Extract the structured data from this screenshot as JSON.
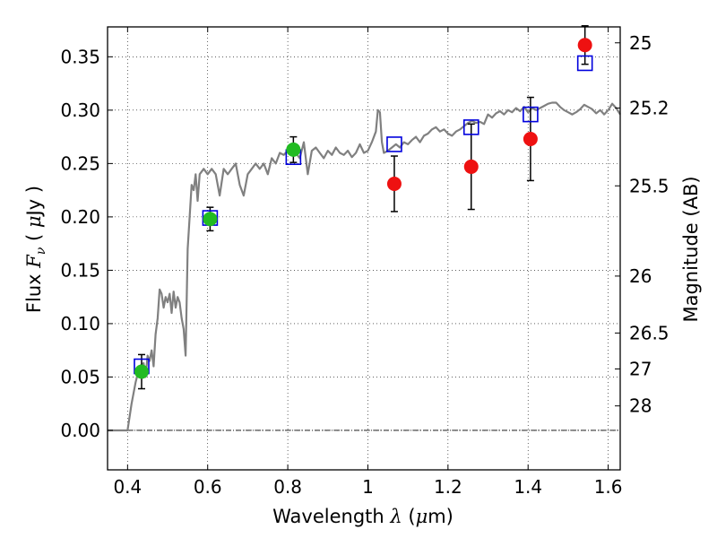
{
  "chart_data": {
    "type": "scatter",
    "xlabel": {
      "pre": "Wavelength  ",
      "sym": "λ",
      "post": " (",
      "mu": "μ",
      "unit": "m)"
    },
    "ylabel": {
      "pre": "Flux  ",
      "sym": "F",
      "sub": "ν",
      "post": "  ( ",
      "mu": "μ",
      "unit": "Jy )"
    },
    "y2label": "Magnitude (AB)",
    "xlim": [
      0.35,
      1.63
    ],
    "ylim": [
      -0.037,
      0.378
    ],
    "grid": true,
    "x_ticks": [
      {
        "v": 0.4,
        "label": "0.4"
      },
      {
        "v": 0.6,
        "label": "0.6"
      },
      {
        "v": 0.8,
        "label": "0.8"
      },
      {
        "v": 1.0,
        "label": "1"
      },
      {
        "v": 1.2,
        "label": "1.2"
      },
      {
        "v": 1.4,
        "label": "1.4"
      },
      {
        "v": 1.6,
        "label": "1.6"
      }
    ],
    "y_ticks": [
      {
        "v": 0.0,
        "label": "0.00"
      },
      {
        "v": 0.05,
        "label": "0.05"
      },
      {
        "v": 0.1,
        "label": "0.10"
      },
      {
        "v": 0.15,
        "label": "0.15"
      },
      {
        "v": 0.2,
        "label": "0.20"
      },
      {
        "v": 0.25,
        "label": "0.25"
      },
      {
        "v": 0.3,
        "label": "0.30"
      },
      {
        "v": 0.35,
        "label": "0.35"
      }
    ],
    "mag_ticks": [
      {
        "mag": 25,
        "label": "25"
      },
      {
        "mag": 25.2,
        "label": "25.2"
      },
      {
        "mag": 25.5,
        "label": "25.5"
      },
      {
        "mag": 26,
        "label": "26"
      },
      {
        "mag": 26.5,
        "label": "26.5"
      },
      {
        "mag": 27,
        "label": "27"
      },
      {
        "mag": 28,
        "label": "28"
      }
    ],
    "model_spectrum": {
      "color": "#808080",
      "points": [
        [
          0.35,
          0.0
        ],
        [
          0.4,
          0.0
        ],
        [
          0.41,
          0.025
        ],
        [
          0.42,
          0.045
        ],
        [
          0.43,
          0.06
        ],
        [
          0.44,
          0.063
        ],
        [
          0.445,
          0.05
        ],
        [
          0.45,
          0.07
        ],
        [
          0.455,
          0.065
        ],
        [
          0.46,
          0.075
        ],
        [
          0.465,
          0.06
        ],
        [
          0.47,
          0.09
        ],
        [
          0.475,
          0.105
        ],
        [
          0.48,
          0.132
        ],
        [
          0.485,
          0.128
        ],
        [
          0.49,
          0.115
        ],
        [
          0.495,
          0.125
        ],
        [
          0.5,
          0.12
        ],
        [
          0.505,
          0.128
        ],
        [
          0.51,
          0.11
        ],
        [
          0.515,
          0.13
        ],
        [
          0.52,
          0.115
        ],
        [
          0.525,
          0.125
        ],
        [
          0.53,
          0.12
        ],
        [
          0.535,
          0.105
        ],
        [
          0.54,
          0.095
        ],
        [
          0.545,
          0.07
        ],
        [
          0.55,
          0.17
        ],
        [
          0.555,
          0.2
        ],
        [
          0.56,
          0.23
        ],
        [
          0.565,
          0.225
        ],
        [
          0.57,
          0.24
        ],
        [
          0.575,
          0.215
        ],
        [
          0.58,
          0.24
        ],
        [
          0.59,
          0.245
        ],
        [
          0.6,
          0.24
        ],
        [
          0.61,
          0.245
        ],
        [
          0.62,
          0.24
        ],
        [
          0.63,
          0.22
        ],
        [
          0.64,
          0.245
        ],
        [
          0.65,
          0.24
        ],
        [
          0.66,
          0.245
        ],
        [
          0.67,
          0.25
        ],
        [
          0.68,
          0.23
        ],
        [
          0.69,
          0.22
        ],
        [
          0.7,
          0.24
        ],
        [
          0.71,
          0.245
        ],
        [
          0.72,
          0.25
        ],
        [
          0.73,
          0.245
        ],
        [
          0.74,
          0.25
        ],
        [
          0.75,
          0.24
        ],
        [
          0.76,
          0.255
        ],
        [
          0.77,
          0.25
        ],
        [
          0.78,
          0.26
        ],
        [
          0.79,
          0.258
        ],
        [
          0.8,
          0.262
        ],
        [
          0.81,
          0.265
        ],
        [
          0.82,
          0.26
        ],
        [
          0.83,
          0.255
        ],
        [
          0.84,
          0.27
        ],
        [
          0.85,
          0.24
        ],
        [
          0.86,
          0.262
        ],
        [
          0.87,
          0.265
        ],
        [
          0.88,
          0.26
        ],
        [
          0.89,
          0.255
        ],
        [
          0.9,
          0.262
        ],
        [
          0.91,
          0.258
        ],
        [
          0.92,
          0.265
        ],
        [
          0.93,
          0.26
        ],
        [
          0.94,
          0.258
        ],
        [
          0.95,
          0.262
        ],
        [
          0.96,
          0.256
        ],
        [
          0.97,
          0.26
        ],
        [
          0.98,
          0.268
        ],
        [
          0.99,
          0.26
        ],
        [
          1.0,
          0.262
        ],
        [
          1.01,
          0.27
        ],
        [
          1.02,
          0.28
        ],
        [
          1.025,
          0.3
        ],
        [
          1.03,
          0.298
        ],
        [
          1.035,
          0.27
        ],
        [
          1.04,
          0.26
        ],
        [
          1.05,
          0.262
        ],
        [
          1.06,
          0.265
        ],
        [
          1.07,
          0.268
        ],
        [
          1.08,
          0.265
        ],
        [
          1.09,
          0.27
        ],
        [
          1.1,
          0.268
        ],
        [
          1.11,
          0.272
        ],
        [
          1.12,
          0.275
        ],
        [
          1.13,
          0.27
        ],
        [
          1.14,
          0.276
        ],
        [
          1.15,
          0.278
        ],
        [
          1.16,
          0.282
        ],
        [
          1.17,
          0.284
        ],
        [
          1.18,
          0.28
        ],
        [
          1.19,
          0.282
        ],
        [
          1.2,
          0.278
        ],
        [
          1.21,
          0.276
        ],
        [
          1.22,
          0.28
        ],
        [
          1.23,
          0.282
        ],
        [
          1.24,
          0.285
        ],
        [
          1.25,
          0.288
        ],
        [
          1.26,
          0.29
        ],
        [
          1.27,
          0.288
        ],
        [
          1.28,
          0.289
        ],
        [
          1.29,
          0.287
        ],
        [
          1.3,
          0.296
        ],
        [
          1.31,
          0.293
        ],
        [
          1.32,
          0.297
        ],
        [
          1.33,
          0.299
        ],
        [
          1.34,
          0.296
        ],
        [
          1.35,
          0.3
        ],
        [
          1.36,
          0.298
        ],
        [
          1.37,
          0.302
        ],
        [
          1.38,
          0.299
        ],
        [
          1.39,
          0.303
        ],
        [
          1.4,
          0.298
        ],
        [
          1.41,
          0.302
        ],
        [
          1.42,
          0.3
        ],
        [
          1.43,
          0.302
        ],
        [
          1.44,
          0.304
        ],
        [
          1.45,
          0.306
        ],
        [
          1.46,
          0.307
        ],
        [
          1.47,
          0.307
        ],
        [
          1.48,
          0.303
        ],
        [
          1.49,
          0.3
        ],
        [
          1.5,
          0.298
        ],
        [
          1.51,
          0.296
        ],
        [
          1.52,
          0.298
        ],
        [
          1.53,
          0.301
        ],
        [
          1.54,
          0.305
        ],
        [
          1.55,
          0.303
        ],
        [
          1.56,
          0.301
        ],
        [
          1.57,
          0.297
        ],
        [
          1.58,
          0.3
        ],
        [
          1.59,
          0.296
        ],
        [
          1.6,
          0.3
        ],
        [
          1.61,
          0.306
        ],
        [
          1.62,
          0.302
        ],
        [
          1.63,
          0.296
        ]
      ]
    },
    "series": [
      {
        "kind": "model-box",
        "color": "#0000dd",
        "points": [
          {
            "x": 0.435,
            "y": 0.06
          },
          {
            "x": 0.606,
            "y": 0.199
          },
          {
            "x": 0.814,
            "y": 0.256
          },
          {
            "x": 1.066,
            "y": 0.268
          },
          {
            "x": 1.258,
            "y": 0.284
          },
          {
            "x": 1.406,
            "y": 0.296
          },
          {
            "x": 1.542,
            "y": 0.344
          }
        ]
      },
      {
        "kind": "detection",
        "color": "#22bb22",
        "points": [
          {
            "x": 0.435,
            "y": 0.055,
            "err": 0.016
          },
          {
            "x": 0.606,
            "y": 0.198,
            "err": 0.011
          },
          {
            "x": 0.814,
            "y": 0.263,
            "err": 0.012
          }
        ]
      },
      {
        "kind": "detection",
        "color": "#ee1111",
        "points": [
          {
            "x": 1.066,
            "y": 0.231,
            "err": 0.026
          },
          {
            "x": 1.258,
            "y": 0.247,
            "err": 0.04
          },
          {
            "x": 1.406,
            "y": 0.273,
            "err": 0.039
          },
          {
            "x": 1.542,
            "y": 0.361,
            "err": 0.018
          }
        ]
      }
    ]
  }
}
